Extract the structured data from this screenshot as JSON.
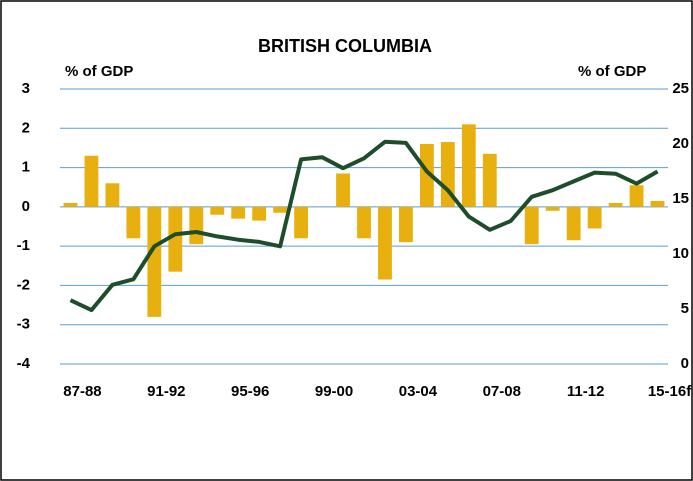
{
  "chart_data": {
    "type": "combo",
    "title": "BRITISH COLUMBIA",
    "y_label": "% of GDP",
    "y2_label": "% of GDP",
    "categories": [
      "87-88",
      null,
      null,
      null,
      "91-92",
      null,
      null,
      null,
      "95-96",
      null,
      null,
      null,
      "99-00",
      null,
      null,
      null,
      "03-04",
      null,
      null,
      null,
      "07-08",
      null,
      null,
      null,
      "11-12",
      null,
      null,
      null,
      "15-16f"
    ],
    "series": [
      {
        "type": "bar",
        "color": "#e8b00f",
        "values": [
          0.1,
          1.3,
          0.6,
          -0.8,
          -2.8,
          -1.65,
          -0.95,
          -0.2,
          -0.3,
          -0.35,
          -0.15,
          -0.8,
          0,
          0.85,
          -0.8,
          -1.85,
          -0.9,
          1.6,
          1.65,
          2.1,
          1.35,
          0,
          -0.95,
          -0.1,
          -0.85,
          -0.55,
          0.1,
          0.55,
          0.15
        ]
      },
      {
        "type": "line",
        "axis": "y2",
        "color": "#1e4d2b",
        "values": [
          5.8,
          4.9,
          7.2,
          7.7,
          10.7,
          11.8,
          12.0,
          11.6,
          11.3,
          11.1,
          10.7,
          18.6,
          18.8,
          17.8,
          18.7,
          20.2,
          20.1,
          17.5,
          15.8,
          13.4,
          12.2,
          13.0,
          15.2,
          15.8,
          16.6,
          17.4,
          17.3,
          16.4,
          17.5
        ]
      }
    ],
    "ylim": [
      -4,
      3
    ],
    "yticks": [
      -4,
      -3,
      -2,
      -1,
      0,
      1,
      2,
      3
    ],
    "y2lim": [
      0,
      25
    ],
    "y2ticks": [
      0,
      5,
      10,
      15,
      20,
      25
    ],
    "grid": true,
    "grid_color": "#5b9bd5"
  }
}
